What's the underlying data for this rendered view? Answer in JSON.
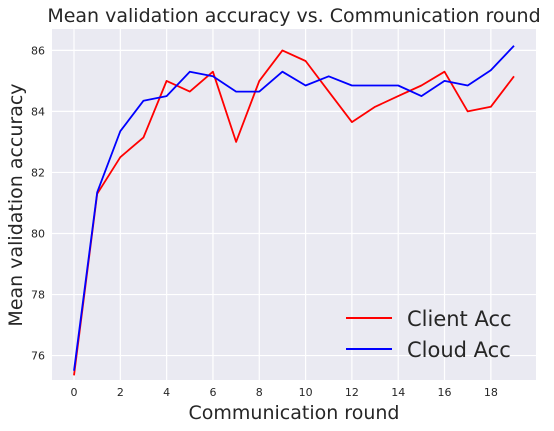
{
  "chart_data": {
    "type": "line",
    "title": "Mean validation accuracy vs. Communication round",
    "xlabel": "Communication round",
    "ylabel": "Mean validation accuracy",
    "xlim": [
      -0.95,
      19.95
    ],
    "ylim": [
      75.2,
      86.7
    ],
    "xticks": [
      "0",
      "2",
      "4",
      "6",
      "8",
      "10",
      "12",
      "14",
      "16",
      "18"
    ],
    "yticks": [
      "76",
      "78",
      "80",
      "82",
      "84",
      "86"
    ],
    "grid": true,
    "legend_position": "lower-right",
    "x": [
      0,
      1,
      2,
      3,
      4,
      5,
      6,
      7,
      8,
      9,
      10,
      11,
      12,
      13,
      14,
      15,
      16,
      17,
      18,
      19
    ],
    "series": [
      {
        "name": "Client Acc",
        "color": "#ff0000",
        "values": [
          75.35,
          81.3,
          82.5,
          83.15,
          85.0,
          84.65,
          85.3,
          83.0,
          85.0,
          86.0,
          85.65,
          84.65,
          83.65,
          84.15,
          84.5,
          84.85,
          85.3,
          84.0,
          84.15,
          85.15
        ]
      },
      {
        "name": "Cloud Acc",
        "color": "#0000ff",
        "values": [
          75.5,
          81.35,
          83.35,
          84.35,
          84.5,
          85.3,
          85.15,
          84.65,
          84.65,
          85.3,
          84.85,
          85.15,
          84.85,
          84.85,
          84.85,
          84.5,
          85.0,
          84.85,
          85.35,
          86.15
        ]
      }
    ]
  }
}
